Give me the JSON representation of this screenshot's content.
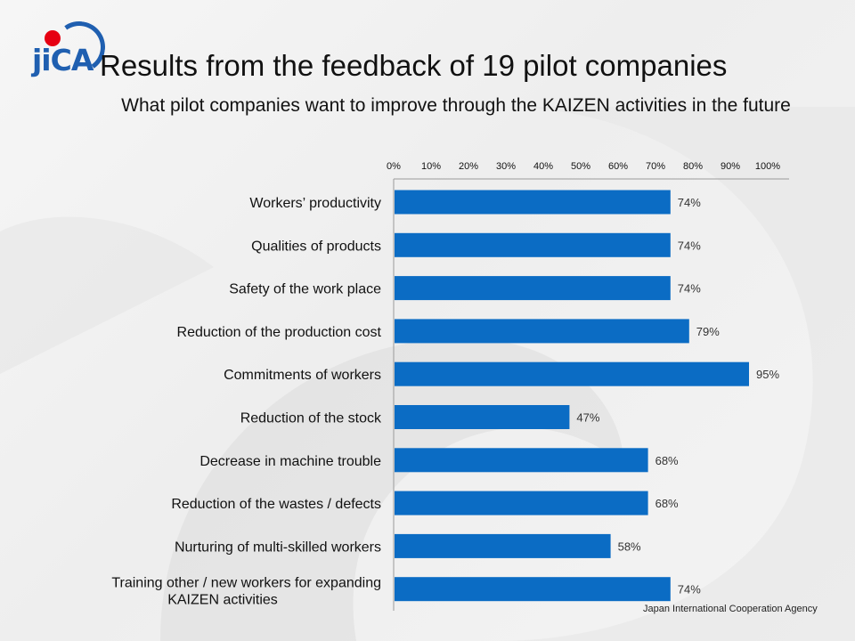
{
  "header": {
    "logo_text": "jiCA",
    "title": "Results from the feedback of 19 pilot companies",
    "subtitle": "What pilot companies want to improve through the KAIZEN activities in the future"
  },
  "footer": {
    "agency": "Japan International Cooperation Agency"
  },
  "colors": {
    "bar": "#0b6cc4",
    "axis": "#9a9a9a",
    "logo_blue": "#1f5fb0",
    "logo_red": "#e60012"
  },
  "chart_data": {
    "type": "bar",
    "orientation": "horizontal",
    "title": "",
    "xlabel": "",
    "ylabel": "",
    "xlim": [
      0,
      100
    ],
    "x_ticks": [
      "0%",
      "10%",
      "20%",
      "30%",
      "40%",
      "50%",
      "60%",
      "70%",
      "80%",
      "90%",
      "100%"
    ],
    "x_axis_position": "top",
    "grid": false,
    "legend": "none",
    "categories": [
      [
        "Workers’ productivity"
      ],
      [
        "Qualities of products"
      ],
      [
        "Safety of the work place"
      ],
      [
        "Reduction of the production cost"
      ],
      [
        "Commitments of workers"
      ],
      [
        "Reduction of the stock"
      ],
      [
        "Decrease in machine trouble"
      ],
      [
        "Reduction of the wastes / defects"
      ],
      [
        "Nurturing of multi-skilled workers"
      ],
      [
        "Training other / new workers for expanding",
        "KAIZEN activities"
      ]
    ],
    "values": [
      74,
      74,
      74,
      79,
      95,
      47,
      68,
      68,
      58,
      74
    ],
    "value_labels": [
      "74%",
      "74%",
      "74%",
      "79%",
      "95%",
      "47%",
      "68%",
      "68%",
      "58%",
      "74%"
    ]
  }
}
